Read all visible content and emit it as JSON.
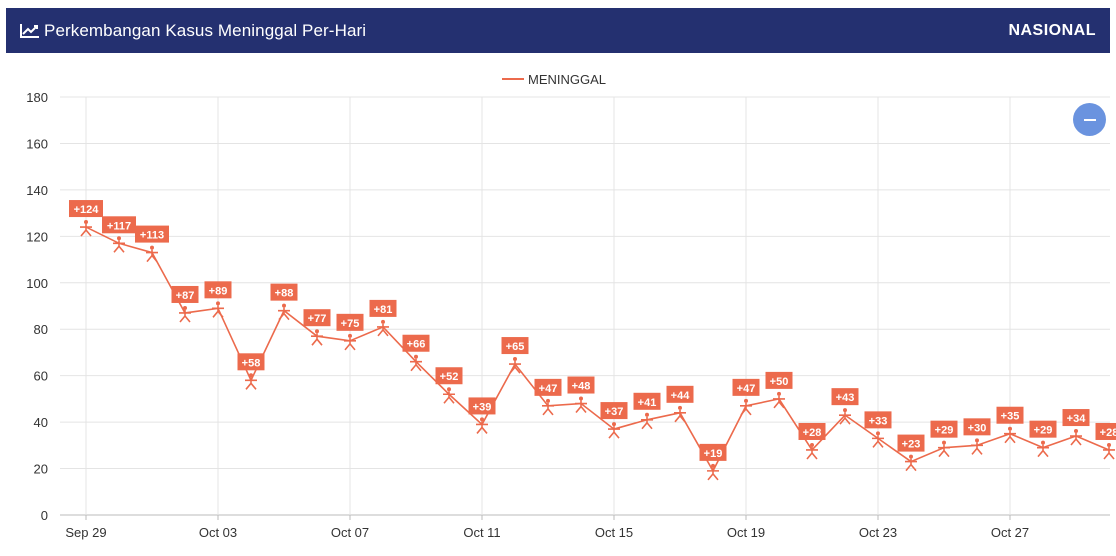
{
  "header": {
    "title": "Perkembangan Kasus Meninggal Per-Hari",
    "badge": "NASIONAL",
    "icon": "line-chart-icon"
  },
  "zoom_button": {
    "icon": "minus-icon"
  },
  "colors": {
    "header_bg": "#243070",
    "series": "#ec6a4c",
    "zoom": "#6a93df"
  },
  "chart_data": {
    "type": "line",
    "legend": {
      "entries": [
        "MENINGGAL"
      ],
      "position": "top-center"
    },
    "ylim": [
      0,
      180
    ],
    "yticks": [
      0,
      20,
      40,
      60,
      80,
      100,
      120,
      140,
      160,
      180
    ],
    "grid": true,
    "x_tick_labels": [
      {
        "index": 0,
        "label": "Sep 29"
      },
      {
        "index": 4,
        "label": "Oct 03"
      },
      {
        "index": 8,
        "label": "Oct 07"
      },
      {
        "index": 12,
        "label": "Oct 11"
      },
      {
        "index": 16,
        "label": "Oct 15"
      },
      {
        "index": 20,
        "label": "Oct 19"
      },
      {
        "index": 24,
        "label": "Oct 23"
      },
      {
        "index": 28,
        "label": "Oct 27"
      }
    ],
    "series": [
      {
        "name": "MENINGGAL",
        "values": [
          124,
          117,
          113,
          87,
          89,
          58,
          88,
          77,
          75,
          81,
          66,
          52,
          39,
          65,
          47,
          48,
          37,
          41,
          44,
          19,
          47,
          50,
          28,
          43,
          33,
          23,
          29,
          30,
          35,
          29,
          34,
          28
        ],
        "labels": [
          "+124",
          "+117",
          "+113",
          "+87",
          "+89",
          "+58",
          "+88",
          "+77",
          "+75",
          "+81",
          "+66",
          "+52",
          "+39",
          "+65",
          "+47",
          "+48",
          "+37",
          "+41",
          "+44",
          "+19",
          "+47",
          "+50",
          "+28",
          "+43",
          "+33",
          "+23",
          "+29",
          "+30",
          "+35",
          "+29",
          "+34",
          "+28"
        ]
      }
    ]
  }
}
